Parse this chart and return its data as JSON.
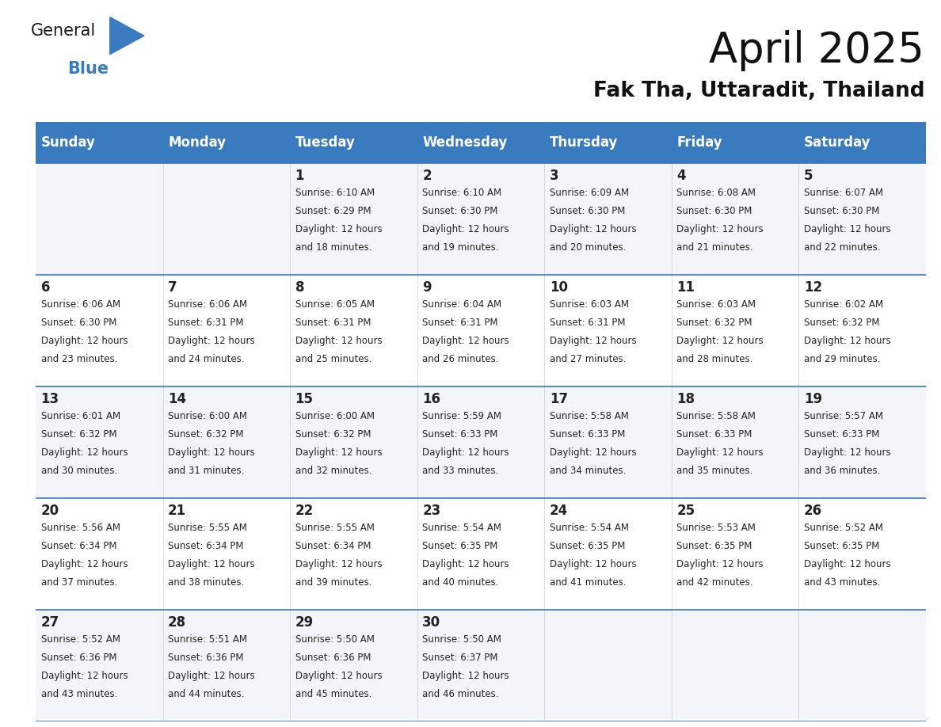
{
  "title": "April 2025",
  "subtitle": "Fak Tha, Uttaradit, Thailand",
  "header_bg_color": "#3a7abf",
  "header_text_color": "#ffffff",
  "row_colors": [
    "#f2f6fa",
    "#ffffff",
    "#f2f6fa",
    "#ffffff",
    "#f2f6fa"
  ],
  "border_color": "#3a7abf",
  "white_color": "#ffffff",
  "text_color": "#222222",
  "days_of_week": [
    "Sunday",
    "Monday",
    "Tuesday",
    "Wednesday",
    "Thursday",
    "Friday",
    "Saturday"
  ],
  "calendar": [
    [
      {
        "day": "",
        "sunrise": "",
        "sunset": "",
        "daylight_h": "",
        "daylight_m": ""
      },
      {
        "day": "",
        "sunrise": "",
        "sunset": "",
        "daylight_h": "",
        "daylight_m": ""
      },
      {
        "day": "1",
        "sunrise": "6:10 AM",
        "sunset": "6:29 PM",
        "daylight_h": "12 hours",
        "daylight_m": "and 18 minutes."
      },
      {
        "day": "2",
        "sunrise": "6:10 AM",
        "sunset": "6:30 PM",
        "daylight_h": "12 hours",
        "daylight_m": "and 19 minutes."
      },
      {
        "day": "3",
        "sunrise": "6:09 AM",
        "sunset": "6:30 PM",
        "daylight_h": "12 hours",
        "daylight_m": "and 20 minutes."
      },
      {
        "day": "4",
        "sunrise": "6:08 AM",
        "sunset": "6:30 PM",
        "daylight_h": "12 hours",
        "daylight_m": "and 21 minutes."
      },
      {
        "day": "5",
        "sunrise": "6:07 AM",
        "sunset": "6:30 PM",
        "daylight_h": "12 hours",
        "daylight_m": "and 22 minutes."
      }
    ],
    [
      {
        "day": "6",
        "sunrise": "6:06 AM",
        "sunset": "6:30 PM",
        "daylight_h": "12 hours",
        "daylight_m": "and 23 minutes."
      },
      {
        "day": "7",
        "sunrise": "6:06 AM",
        "sunset": "6:31 PM",
        "daylight_h": "12 hours",
        "daylight_m": "and 24 minutes."
      },
      {
        "day": "8",
        "sunrise": "6:05 AM",
        "sunset": "6:31 PM",
        "daylight_h": "12 hours",
        "daylight_m": "and 25 minutes."
      },
      {
        "day": "9",
        "sunrise": "6:04 AM",
        "sunset": "6:31 PM",
        "daylight_h": "12 hours",
        "daylight_m": "and 26 minutes."
      },
      {
        "day": "10",
        "sunrise": "6:03 AM",
        "sunset": "6:31 PM",
        "daylight_h": "12 hours",
        "daylight_m": "and 27 minutes."
      },
      {
        "day": "11",
        "sunrise": "6:03 AM",
        "sunset": "6:32 PM",
        "daylight_h": "12 hours",
        "daylight_m": "and 28 minutes."
      },
      {
        "day": "12",
        "sunrise": "6:02 AM",
        "sunset": "6:32 PM",
        "daylight_h": "12 hours",
        "daylight_m": "and 29 minutes."
      }
    ],
    [
      {
        "day": "13",
        "sunrise": "6:01 AM",
        "sunset": "6:32 PM",
        "daylight_h": "12 hours",
        "daylight_m": "and 30 minutes."
      },
      {
        "day": "14",
        "sunrise": "6:00 AM",
        "sunset": "6:32 PM",
        "daylight_h": "12 hours",
        "daylight_m": "and 31 minutes."
      },
      {
        "day": "15",
        "sunrise": "6:00 AM",
        "sunset": "6:32 PM",
        "daylight_h": "12 hours",
        "daylight_m": "and 32 minutes."
      },
      {
        "day": "16",
        "sunrise": "5:59 AM",
        "sunset": "6:33 PM",
        "daylight_h": "12 hours",
        "daylight_m": "and 33 minutes."
      },
      {
        "day": "17",
        "sunrise": "5:58 AM",
        "sunset": "6:33 PM",
        "daylight_h": "12 hours",
        "daylight_m": "and 34 minutes."
      },
      {
        "day": "18",
        "sunrise": "5:58 AM",
        "sunset": "6:33 PM",
        "daylight_h": "12 hours",
        "daylight_m": "and 35 minutes."
      },
      {
        "day": "19",
        "sunrise": "5:57 AM",
        "sunset": "6:33 PM",
        "daylight_h": "12 hours",
        "daylight_m": "and 36 minutes."
      }
    ],
    [
      {
        "day": "20",
        "sunrise": "5:56 AM",
        "sunset": "6:34 PM",
        "daylight_h": "12 hours",
        "daylight_m": "and 37 minutes."
      },
      {
        "day": "21",
        "sunrise": "5:55 AM",
        "sunset": "6:34 PM",
        "daylight_h": "12 hours",
        "daylight_m": "and 38 minutes."
      },
      {
        "day": "22",
        "sunrise": "5:55 AM",
        "sunset": "6:34 PM",
        "daylight_h": "12 hours",
        "daylight_m": "and 39 minutes."
      },
      {
        "day": "23",
        "sunrise": "5:54 AM",
        "sunset": "6:35 PM",
        "daylight_h": "12 hours",
        "daylight_m": "and 40 minutes."
      },
      {
        "day": "24",
        "sunrise": "5:54 AM",
        "sunset": "6:35 PM",
        "daylight_h": "12 hours",
        "daylight_m": "and 41 minutes."
      },
      {
        "day": "25",
        "sunrise": "5:53 AM",
        "sunset": "6:35 PM",
        "daylight_h": "12 hours",
        "daylight_m": "and 42 minutes."
      },
      {
        "day": "26",
        "sunrise": "5:52 AM",
        "sunset": "6:35 PM",
        "daylight_h": "12 hours",
        "daylight_m": "and 43 minutes."
      }
    ],
    [
      {
        "day": "27",
        "sunrise": "5:52 AM",
        "sunset": "6:36 PM",
        "daylight_h": "12 hours",
        "daylight_m": "and 43 minutes."
      },
      {
        "day": "28",
        "sunrise": "5:51 AM",
        "sunset": "6:36 PM",
        "daylight_h": "12 hours",
        "daylight_m": "and 44 minutes."
      },
      {
        "day": "29",
        "sunrise": "5:50 AM",
        "sunset": "6:36 PM",
        "daylight_h": "12 hours",
        "daylight_m": "and 45 minutes."
      },
      {
        "day": "30",
        "sunrise": "5:50 AM",
        "sunset": "6:37 PM",
        "daylight_h": "12 hours",
        "daylight_m": "and 46 minutes."
      },
      {
        "day": "",
        "sunrise": "",
        "sunset": "",
        "daylight_h": "",
        "daylight_m": ""
      },
      {
        "day": "",
        "sunrise": "",
        "sunset": "",
        "daylight_h": "",
        "daylight_m": ""
      },
      {
        "day": "",
        "sunrise": "",
        "sunset": "",
        "daylight_h": "",
        "daylight_m": ""
      }
    ]
  ],
  "logo_general_color": "#1a1a1a",
  "logo_blue_color": "#3a7abf",
  "title_fontsize": 38,
  "subtitle_fontsize": 19,
  "day_header_fontsize": 12,
  "day_num_fontsize": 12,
  "cell_text_fontsize": 8.5
}
